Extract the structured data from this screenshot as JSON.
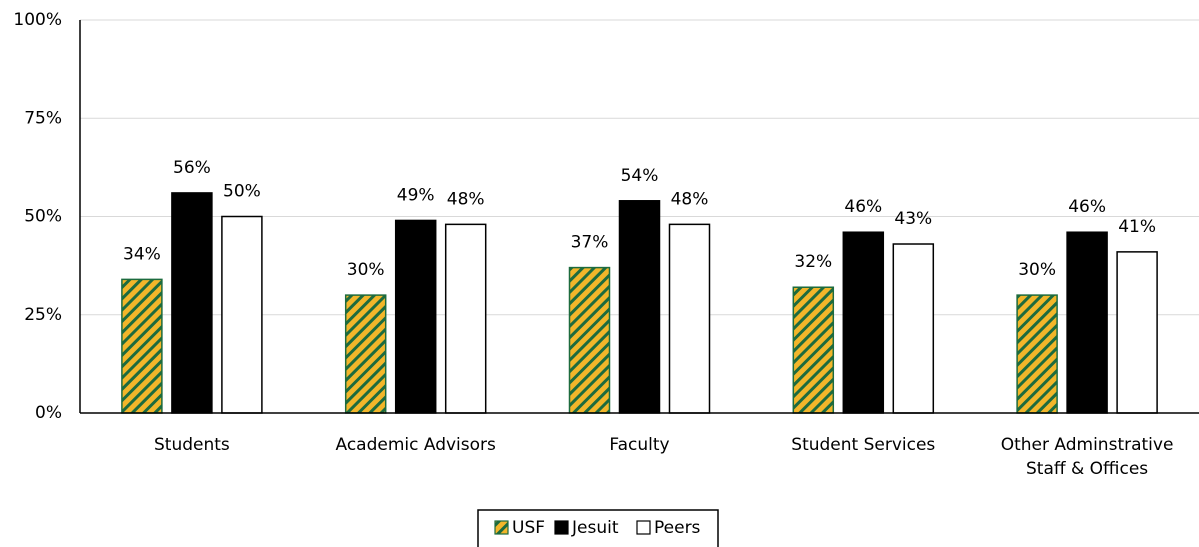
{
  "chart_data": {
    "type": "bar",
    "categories": [
      "Students",
      "Academic Advisors",
      "Faculty",
      "Student Services",
      "Other Adminstrative Staff & Offices"
    ],
    "series": [
      {
        "name": "USF",
        "color": "#f2b62a",
        "hatch": "#1d6b3e",
        "values": [
          34,
          30,
          37,
          32,
          30
        ],
        "value_labels": [
          "34%",
          "30%",
          "37%",
          "32%",
          "30%"
        ]
      },
      {
        "name": "Jesuit",
        "color": "#000000",
        "values": [
          56,
          49,
          54,
          46,
          46
        ],
        "value_labels": [
          "56%",
          "49%",
          "54%",
          "46%",
          "46%"
        ]
      },
      {
        "name": "Peers",
        "color": "#ffffff",
        "values": [
          50,
          48,
          48,
          43,
          41
        ],
        "value_labels": [
          "50%",
          "48%",
          "48%",
          "43%",
          "41%"
        ]
      }
    ],
    "ylim": [
      0,
      100
    ],
    "yticks": [
      {
        "value": 0,
        "label": "0%"
      },
      {
        "value": 25,
        "label": "25%"
      },
      {
        "value": 50,
        "label": "50%"
      },
      {
        "value": 75,
        "label": "75%"
      },
      {
        "value": 100,
        "label": "100%"
      }
    ],
    "grid": true,
    "legend": "bottom"
  }
}
